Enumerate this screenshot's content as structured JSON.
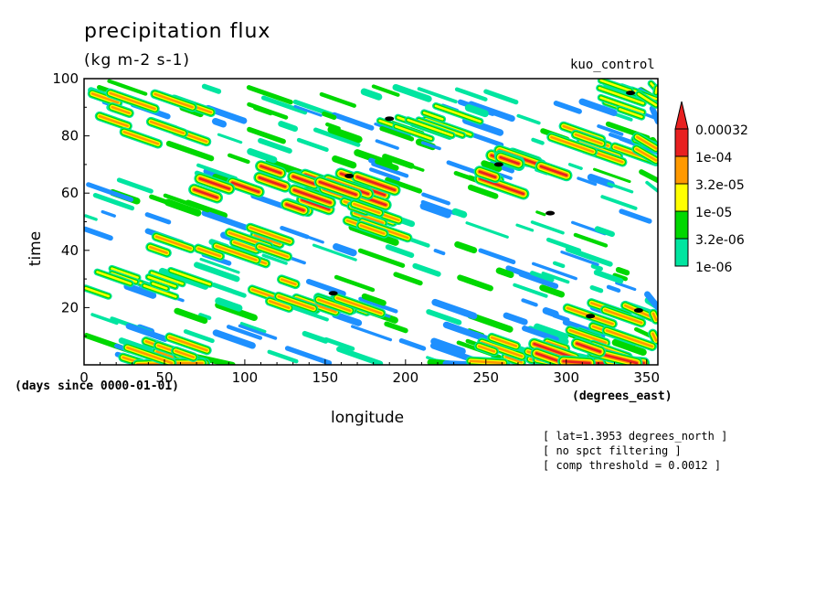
{
  "header": {
    "title": "precipitation flux",
    "units": "(kg m-2 s-1)",
    "experiment": "kuo_control"
  },
  "notes": [
    "[ lat=1.3953 degrees_north ]",
    "[ no spct filtering ]",
    "[ comp threshold = 0.0012 ]"
  ],
  "chart_data": {
    "type": "heatmap",
    "title": "precipitation flux",
    "units": "(kg m-2 s-1)",
    "xlabel": "longitude",
    "xunits": "(degrees_east)",
    "ylabel": "time",
    "yunits": "(days since 0000-01-01)",
    "xlim": [
      0,
      357
    ],
    "ylim": [
      0,
      100
    ],
    "xticks": [
      0,
      50,
      100,
      150,
      200,
      250,
      300,
      350
    ],
    "yticks": [
      20,
      40,
      60,
      80,
      100
    ],
    "colorbar": {
      "levels": [
        "1e-06",
        "3.2e-06",
        "1e-05",
        "3.2e-05",
        "1e-04",
        "0.00032"
      ],
      "colors": [
        "#1e90ff",
        "#00e5a0",
        "#00d800",
        "#ffff00",
        "#ff9900",
        "#e82020"
      ],
      "above_color": "#e82020",
      "max_marker_color": "#000000"
    },
    "bands": [
      {
        "lon": [
          0,
          60
        ],
        "t": [
          80,
          95
        ],
        "level": 4
      },
      {
        "lon": [
          60,
          140
        ],
        "t": [
          55,
          70
        ],
        "level": 5
      },
      {
        "lon": [
          130,
          175
        ],
        "t": [
          60,
          68
        ],
        "level": 5
      },
      {
        "lon": [
          155,
          175
        ],
        "t": [
          48,
          58
        ],
        "level": 4
      },
      {
        "lon": [
          40,
          110
        ],
        "t": [
          38,
          48
        ],
        "level": 4
      },
      {
        "lon": [
          0,
          60
        ],
        "t": [
          25,
          35
        ],
        "level": 3
      },
      {
        "lon": [
          100,
          160
        ],
        "t": [
          20,
          30
        ],
        "level": 4
      },
      {
        "lon": [
          240,
          300
        ],
        "t": [
          65,
          75
        ],
        "level": 5
      },
      {
        "lon": [
          290,
          350
        ],
        "t": [
          75,
          85
        ],
        "level": 4
      },
      {
        "lon": [
          300,
          357
        ],
        "t": [
          10,
          22
        ],
        "level": 4
      },
      {
        "lon": [
          20,
          60
        ],
        "t": [
          0,
          10
        ],
        "level": 4
      },
      {
        "lon": [
          240,
          290
        ],
        "t": [
          0,
          10
        ],
        "level": 4
      },
      {
        "lon": [
          280,
          330
        ],
        "t": [
          0,
          8
        ],
        "level": 5
      },
      {
        "lon": [
          180,
          220
        ],
        "t": [
          83,
          92
        ],
        "level": 3
      },
      {
        "lon": [
          320,
          357
        ],
        "t": [
          88,
          100
        ],
        "level": 3
      }
    ]
  }
}
